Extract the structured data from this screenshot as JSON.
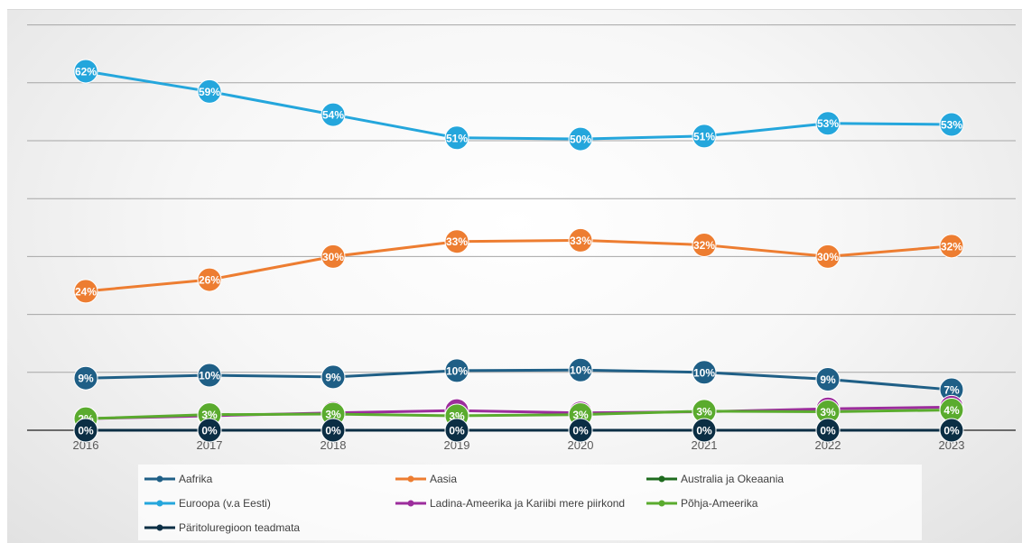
{
  "chart_data": {
    "type": "line",
    "title": "",
    "xlabel": "",
    "ylabel": "",
    "x": [
      "2016",
      "2017",
      "2018",
      "2019",
      "2020",
      "2021",
      "2022",
      "2023"
    ],
    "ylim": [
      0,
      0.72
    ],
    "y_gridlines": [
      0,
      0.1,
      0.2,
      0.3,
      0.4,
      0.5,
      0.6,
      0.7
    ],
    "y_tick_labels_shown": false,
    "grid": true,
    "legend": "bottom",
    "series": [
      {
        "name": "Aafrika",
        "color": "#1f5f86",
        "values": [
          0.09,
          0.095,
          0.092,
          0.103,
          0.104,
          0.1,
          0.088,
          0.07
        ],
        "labels": [
          "9%",
          "10%",
          "9%",
          "10%",
          "10%",
          "10%",
          "9%",
          "7%"
        ]
      },
      {
        "name": "Aasia",
        "color": "#ed7d31",
        "values": [
          0.24,
          0.26,
          0.3,
          0.326,
          0.328,
          0.32,
          0.3,
          0.318
        ],
        "labels": [
          "24%",
          "26%",
          "30%",
          "33%",
          "33%",
          "32%",
          "30%",
          "32%"
        ]
      },
      {
        "name": "Australia ja Okeaania",
        "color": "#1e6b1e",
        "values": [
          0.0,
          0.0,
          0.0,
          0.0,
          0.0,
          0.0,
          0.0,
          0.0
        ],
        "labels": [
          "0%",
          "0%",
          "0%",
          "0%",
          "0%",
          "0%",
          "0%",
          "0%"
        ]
      },
      {
        "name": "Euroopa (v.a Eesti)",
        "color": "#24a6dc",
        "values": [
          0.62,
          0.585,
          0.545,
          0.505,
          0.503,
          0.508,
          0.53,
          0.528
        ],
        "labels": [
          "62%",
          "59%",
          "54%",
          "51%",
          "50%",
          "51%",
          "53%",
          "53%"
        ]
      },
      {
        "name": "Ladina-Ameerika ja Kariibi mere piirkond",
        "color": "#9c2d9c",
        "values": [
          0.02,
          0.025,
          0.03,
          0.034,
          0.03,
          0.032,
          0.037,
          0.04
        ],
        "labels": [
          "2%",
          "2%",
          "3%",
          "3%",
          "3%",
          "3%",
          "4%",
          "4%"
        ]
      },
      {
        "name": "Põhja-Ameerika",
        "color": "#5aab2e",
        "values": [
          0.02,
          0.027,
          0.028,
          0.025,
          0.027,
          0.033,
          0.032,
          0.035
        ],
        "labels": [
          "2%",
          "3%",
          "3%",
          "3%",
          "3%",
          "3%",
          "3%",
          "4%"
        ]
      },
      {
        "name": "Päritoluregioon teadmata",
        "color": "#0b2e44",
        "values": [
          0.0,
          0.0,
          0.0,
          0.0,
          0.0,
          0.0,
          0.0,
          0.0
        ],
        "labels": [
          "0%",
          "0%",
          "0%",
          "0%",
          "0%",
          "0%",
          "0%",
          "0%"
        ]
      }
    ],
    "legend_entries": [
      "Aafrika",
      "Aasia",
      "Australia ja Okeaania",
      "Euroopa (v.a Eesti)",
      "Ladina-Ameerika ja Kariibi mere piirkond",
      "Põhja-Ameerika",
      "Päritoluregioon teadmata"
    ]
  }
}
